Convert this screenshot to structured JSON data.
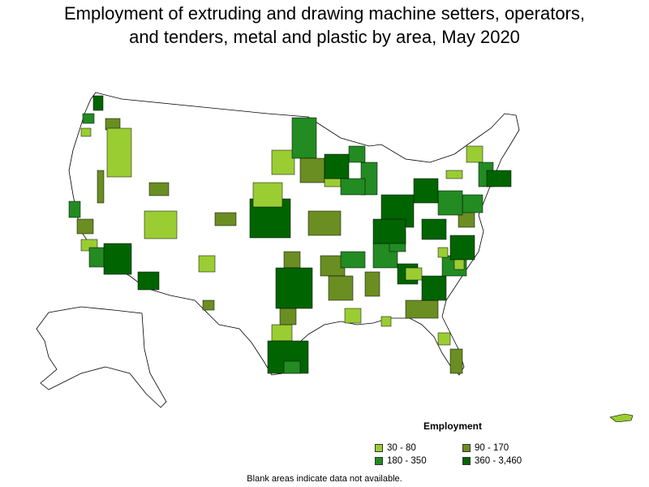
{
  "title": {
    "line1": "Employment of extruding and drawing machine setters, operators,",
    "line2": "and tenders, metal and plastic by area, May 2020"
  },
  "legend": {
    "title": "Employment",
    "items": [
      {
        "label": "30 - 80",
        "color": "#9acd32"
      },
      {
        "label": "90 - 170",
        "color": "#6b8e23"
      },
      {
        "label": "180 - 350",
        "color": "#228b22"
      },
      {
        "label": "360 - 3,460",
        "color": "#006400"
      }
    ]
  },
  "note": "Blank areas indicate data not available.",
  "colors": {
    "border": "#000000",
    "background": "#ffffff",
    "no_data": "#ffffff"
  }
}
